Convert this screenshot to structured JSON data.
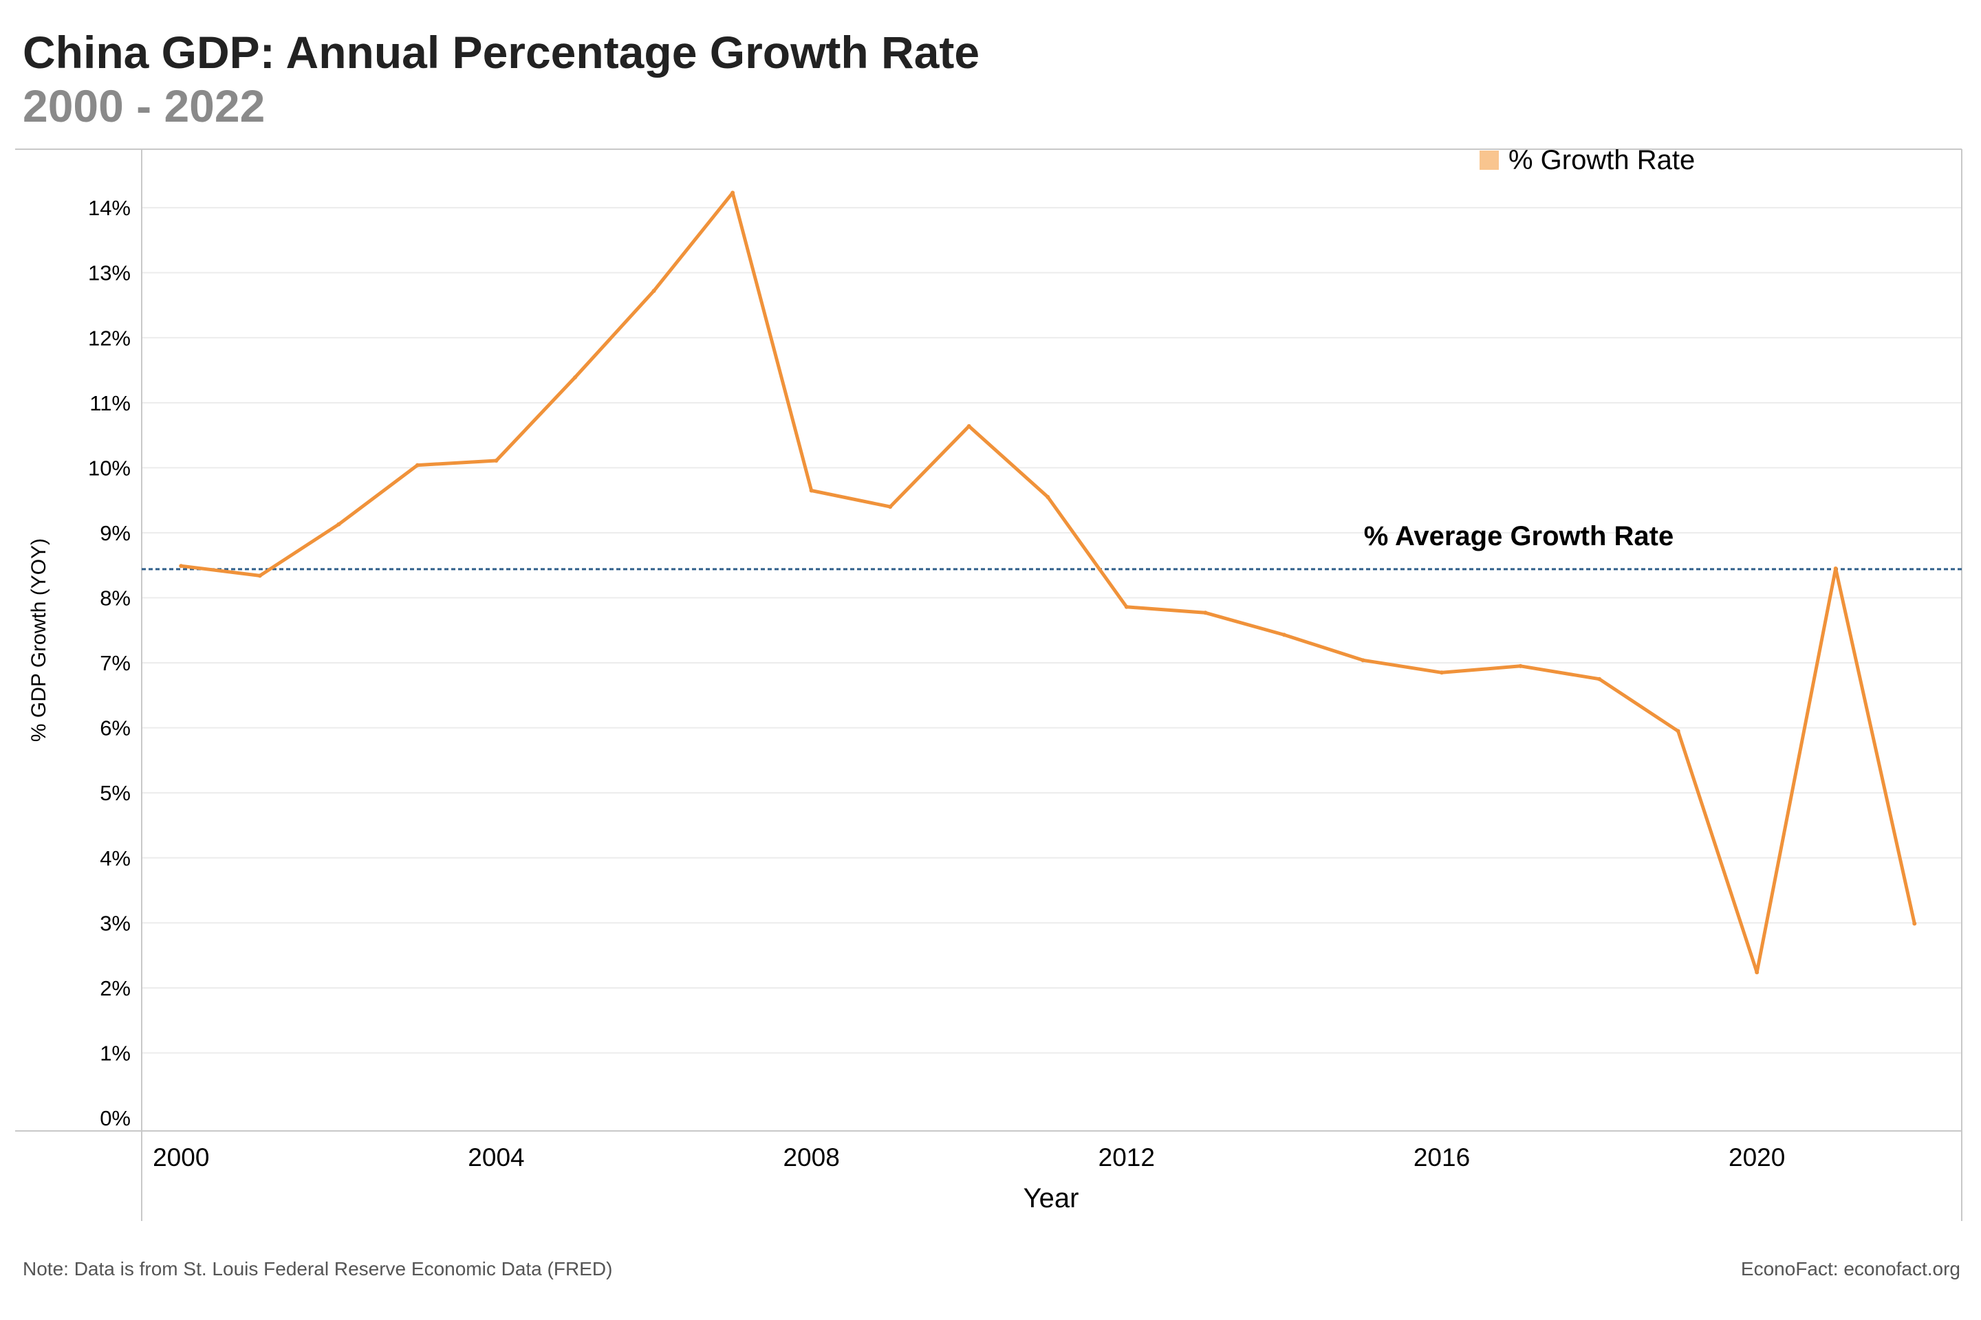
{
  "header": {
    "title": "China GDP: Annual Percentage Growth Rate",
    "subtitle": "2000 - 2022"
  },
  "footer": {
    "note": "Note: Data is from St. Louis Federal Reserve Economic Data (FRED)",
    "credit": "EconoFact: econofact.org"
  },
  "colors": {
    "line": "#f0923a",
    "legend_swatch": "#f9c58f",
    "average_line": "#2f5f8a",
    "grid": "#ececec",
    "axis": "#c8c8c8"
  },
  "chart_data": {
    "type": "line",
    "title": "China GDP: Annual Percentage Growth Rate",
    "subtitle": "2000 - 2022",
    "xlabel": "Year",
    "ylabel": "% GDP Growth (YOY)",
    "x": [
      2000,
      2001,
      2002,
      2003,
      2004,
      2005,
      2006,
      2007,
      2008,
      2009,
      2010,
      2011,
      2012,
      2013,
      2014,
      2015,
      2016,
      2017,
      2018,
      2019,
      2020,
      2021,
      2022
    ],
    "series": [
      {
        "name": "% Growth Rate",
        "values": [
          8.49,
          8.34,
          9.13,
          10.04,
          10.11,
          11.39,
          12.72,
          14.23,
          9.65,
          9.4,
          10.64,
          9.55,
          7.86,
          7.77,
          7.43,
          7.04,
          6.85,
          6.95,
          6.75,
          5.95,
          2.24,
          8.45,
          2.99
        ]
      }
    ],
    "average": {
      "label": "% Average Growth Rate",
      "value": 8.44
    },
    "xlim": [
      1999.5,
      2022.6
    ],
    "ylim": [
      -0.2,
      14.9
    ],
    "x_ticks": [
      2000,
      2004,
      2008,
      2012,
      2016,
      2020
    ],
    "x_tick_labels": [
      "2000",
      "2004",
      "2008",
      "2012",
      "2016",
      "2020"
    ],
    "y_ticks": [
      0,
      1,
      2,
      3,
      4,
      5,
      6,
      7,
      8,
      9,
      10,
      11,
      12,
      13,
      14
    ],
    "y_tick_labels": [
      "0%",
      "1%",
      "2%",
      "3%",
      "4%",
      "5%",
      "6%",
      "7%",
      "8%",
      "9%",
      "10%",
      "11%",
      "12%",
      "13%",
      "14%"
    ],
    "legend": [
      "% Growth Rate"
    ],
    "legend_position": "top-right",
    "grid": true
  }
}
